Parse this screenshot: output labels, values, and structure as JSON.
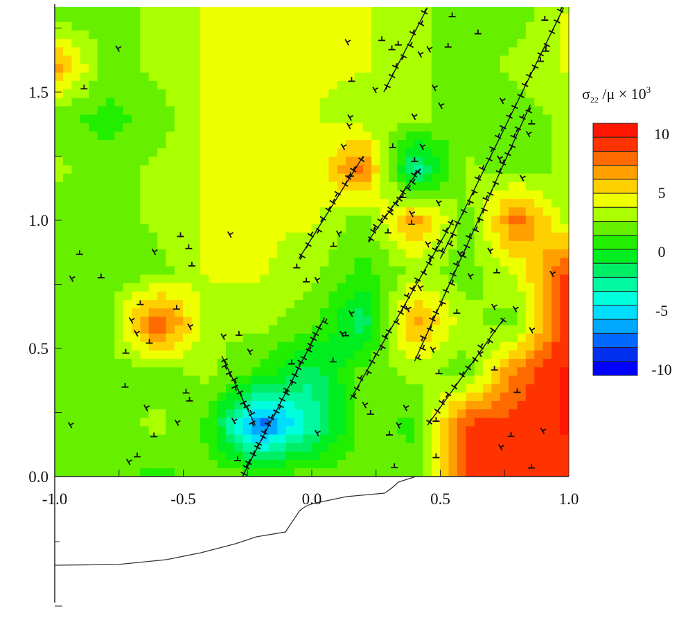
{
  "chart_data": {
    "type": "heatmap",
    "title": "",
    "colorbar": {
      "label_symbol": "σ",
      "label_sub": "22",
      "label_rest": " /μ × 10",
      "label_sup": "3",
      "ticks": [
        "10",
        "5",
        "0",
        "-5",
        "-10"
      ],
      "tick_values": [
        10,
        5,
        0,
        -5,
        -10
      ],
      "range": [
        -10.5,
        11
      ],
      "colors": [
        "#ff1500",
        "#ff3300",
        "#ff6a00",
        "#ffa000",
        "#ffd000",
        "#eeff00",
        "#aaff00",
        "#66f000",
        "#22ee00",
        "#00ee20",
        "#00ee66",
        "#00f8a0",
        "#00ffdd",
        "#00ddff",
        "#00a8ff",
        "#0068ff",
        "#0030ee",
        "#0000ff"
      ]
    },
    "x_axis": {
      "range": [
        -1.0,
        1.0
      ],
      "ticks": [
        "-1.0",
        "-0.5",
        "0.0",
        "0.5",
        "1.0"
      ],
      "tick_values": [
        -1,
        -0.5,
        0,
        0.5,
        1
      ]
    },
    "y_axis": {
      "range": [
        0.0,
        1.83
      ],
      "ticks": [
        "0.0",
        "0.5",
        "1.0",
        "1.5"
      ],
      "tick_values": [
        0,
        0.5,
        1,
        1.5
      ]
    },
    "grid_x": [
      -1.0,
      -0.8,
      -0.6,
      -0.4,
      -0.2,
      0.0,
      0.2,
      0.4,
      0.6,
      0.8,
      1.0
    ],
    "grid_y": [
      1.8,
      1.6,
      1.4,
      1.2,
      1.0,
      0.8,
      0.6,
      0.4,
      0.2,
      0.0
    ],
    "values": [
      [
        2,
        2,
        3,
        4,
        4,
        4,
        4,
        3,
        2,
        2,
        4
      ],
      [
        7,
        2,
        3,
        4,
        4,
        4,
        4,
        3,
        2,
        3,
        4
      ],
      [
        2,
        1,
        2,
        4,
        4,
        4,
        3,
        3,
        2,
        2,
        3
      ],
      [
        3,
        2,
        3,
        4,
        4,
        4,
        8,
        -3,
        3,
        2,
        3
      ],
      [
        2,
        2,
        3,
        4,
        4,
        4,
        2,
        7,
        2,
        8,
        3
      ],
      [
        2,
        2,
        2,
        4,
        4,
        3,
        1,
        3,
        2,
        4,
        9
      ],
      [
        2,
        2,
        9,
        3,
        3,
        2,
        -2,
        7,
        3,
        2,
        10
      ],
      [
        2,
        2,
        2,
        3,
        1,
        -2,
        2,
        3,
        2,
        8,
        10
      ],
      [
        2,
        2,
        3,
        1,
        -8,
        -3,
        2,
        1,
        9,
        9,
        10
      ],
      [
        2,
        2,
        1,
        2,
        2,
        2,
        2,
        2,
        9,
        9,
        9
      ]
    ],
    "dislocation_slip_lines": [
      {
        "from": [
          -0.27,
          0.0
        ],
        "to": [
          0.05,
          0.62
        ],
        "count": 26
      },
      {
        "from": [
          -0.35,
          0.47
        ],
        "to": [
          -0.22,
          0.2
        ],
        "count": 10
      },
      {
        "from": [
          -0.05,
          0.85
        ],
        "to": [
          0.2,
          1.25
        ],
        "count": 12
      },
      {
        "from": [
          0.22,
          0.92
        ],
        "to": [
          0.42,
          1.2
        ],
        "count": 14
      },
      {
        "from": [
          0.15,
          0.3
        ],
        "to": [
          0.55,
          1.0
        ],
        "count": 22
      },
      {
        "from": [
          0.4,
          0.45
        ],
        "to": [
          0.85,
          1.45
        ],
        "count": 28
      },
      {
        "from": [
          0.5,
          0.85
        ],
        "to": [
          0.98,
          1.83
        ],
        "count": 24
      },
      {
        "from": [
          0.28,
          1.5
        ],
        "to": [
          0.45,
          1.83
        ],
        "count": 8
      },
      {
        "from": [
          0.45,
          0.2
        ],
        "to": [
          0.75,
          0.62
        ],
        "count": 12
      }
    ]
  }
}
